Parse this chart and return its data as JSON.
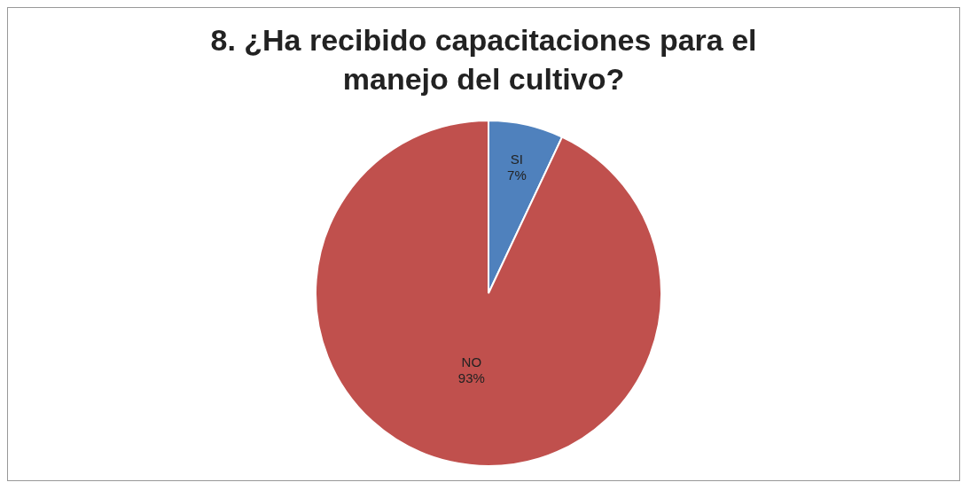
{
  "chart_data": {
    "type": "pie",
    "title": "8. ¿Ha recibido capacitaciones para el manejo del cultivo?",
    "categories": [
      "SI",
      "NO"
    ],
    "values": [
      7,
      93
    ],
    "value_labels": [
      "7%",
      "93%"
    ],
    "colors": [
      "#4f81bd",
      "#c0504d"
    ]
  }
}
